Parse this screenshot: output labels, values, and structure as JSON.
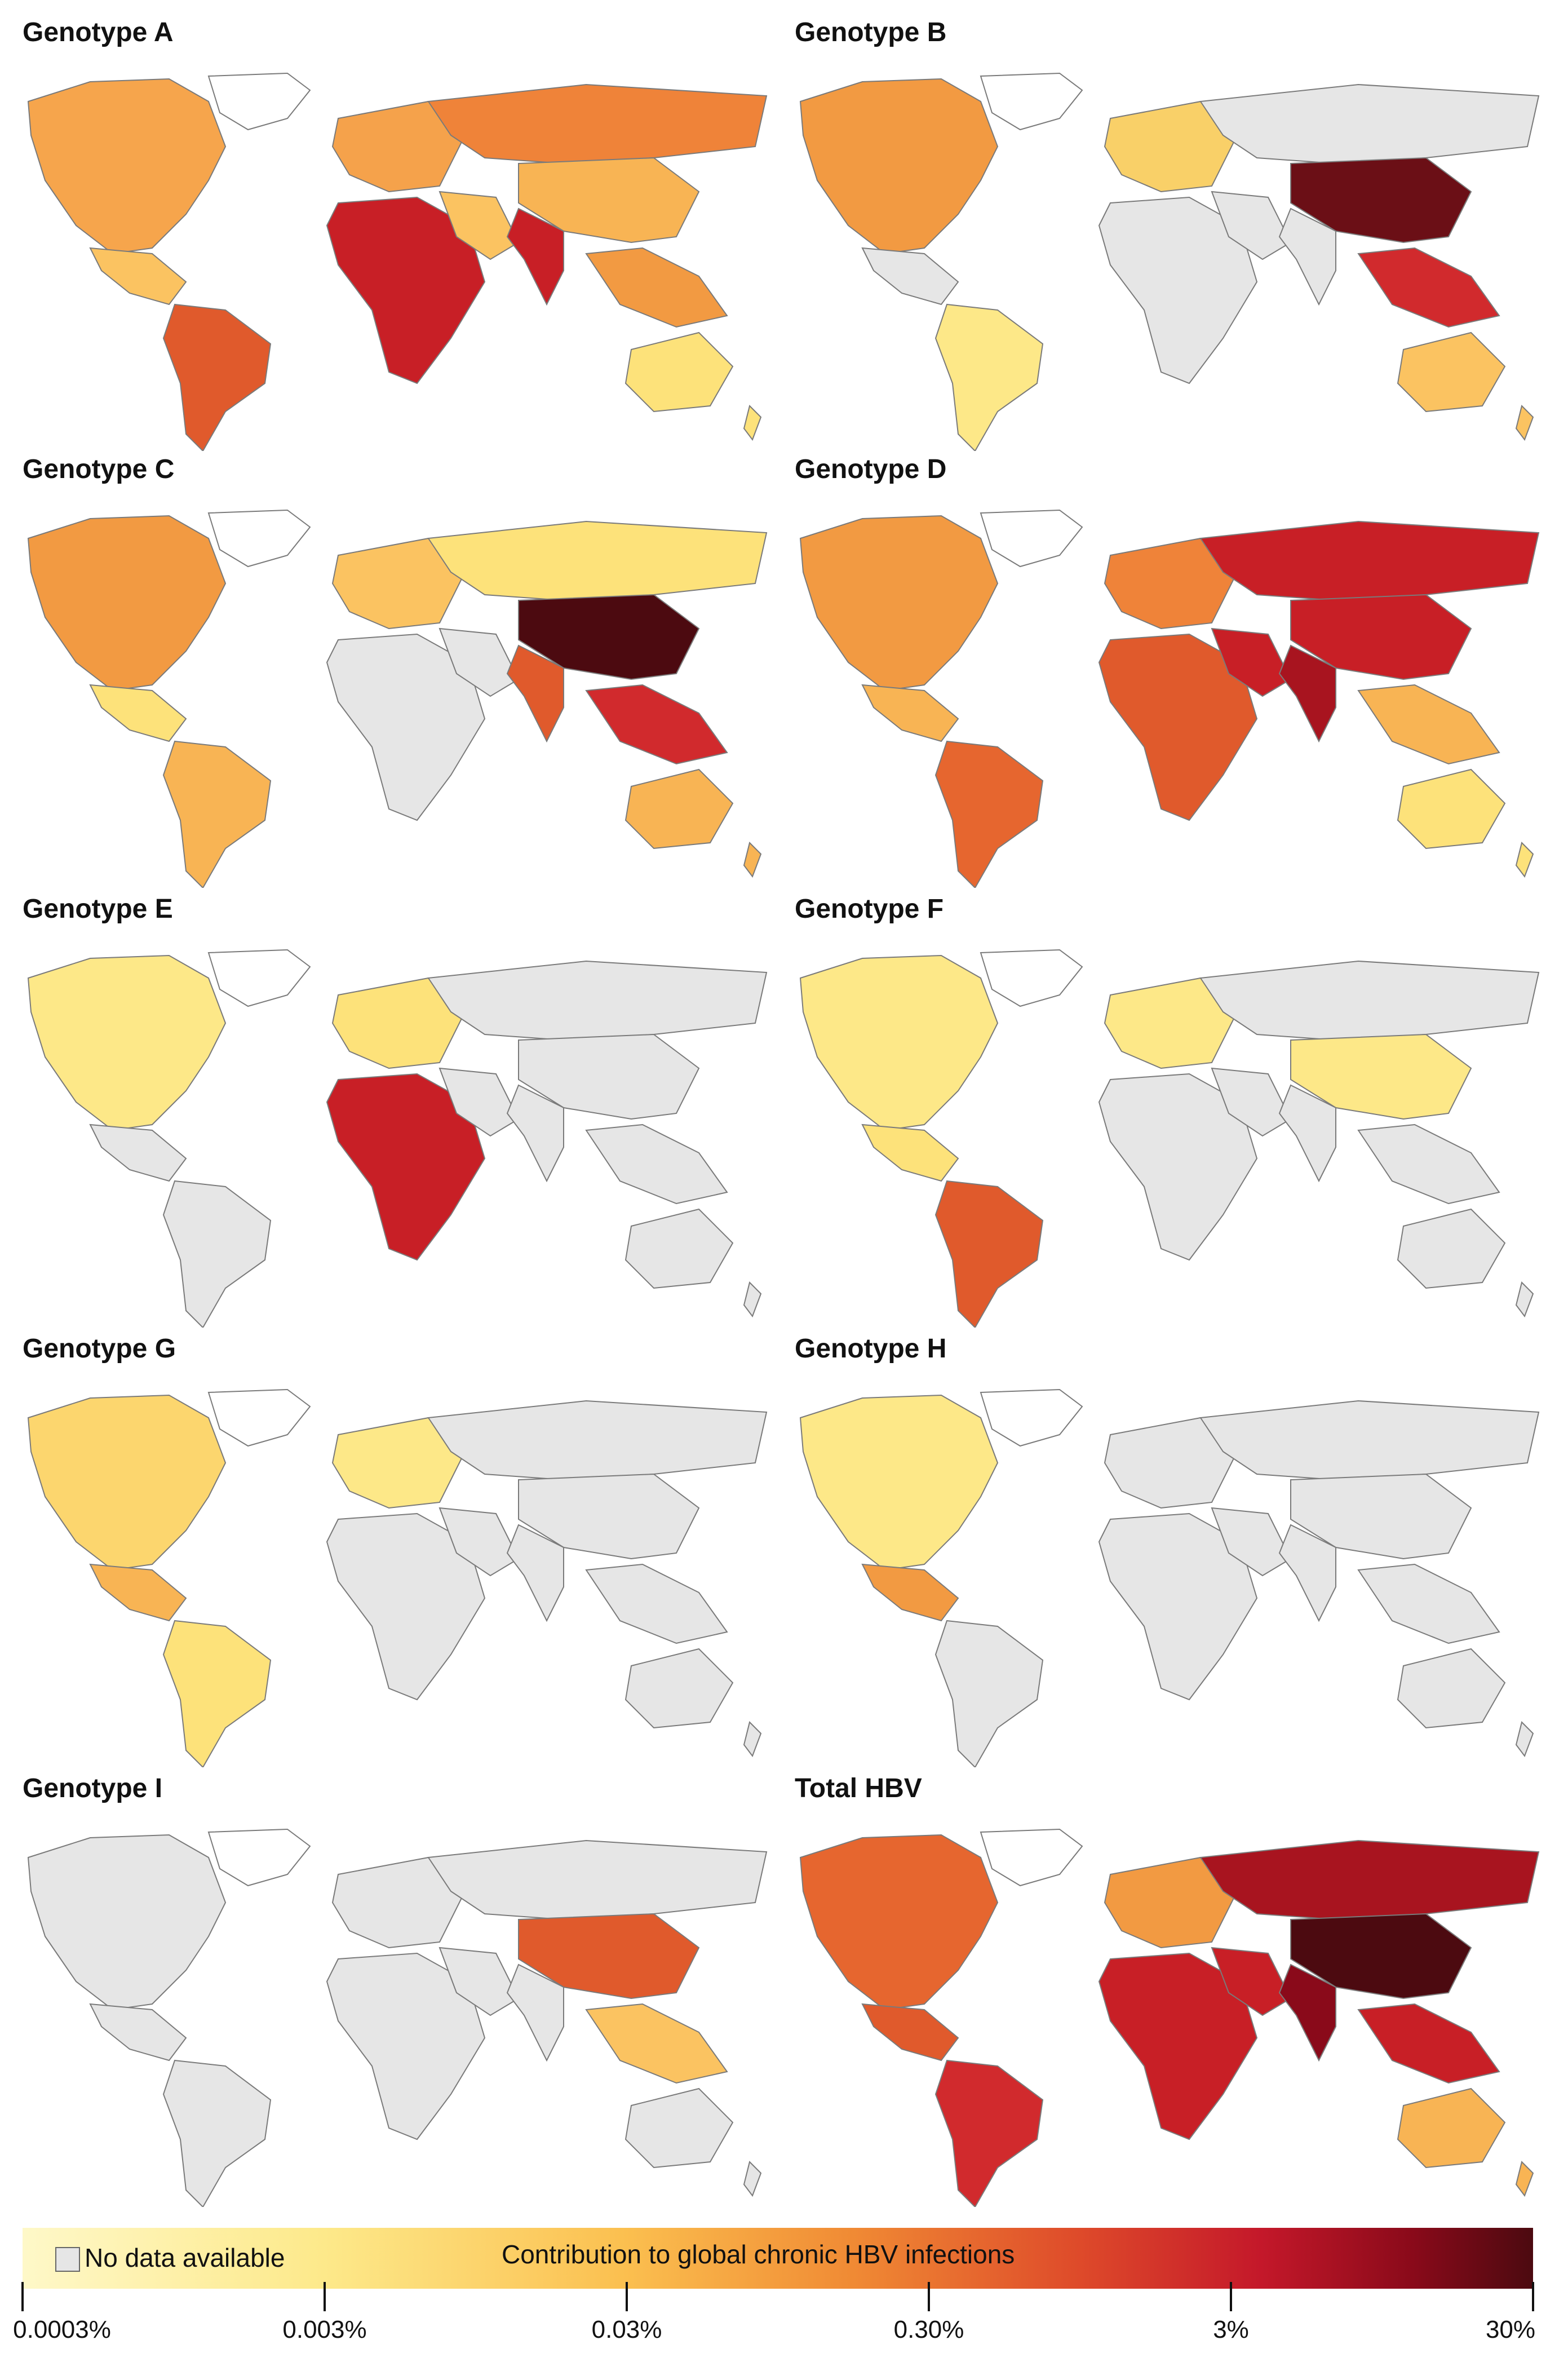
{
  "panels": [
    {
      "id": "A",
      "title": "Genotype A",
      "fills": {
        "na": "#f6a54c",
        "ca": "#fbc361",
        "sa": "#e05a2c",
        "europe": "#f5a24b",
        "africa": "#c81f26",
        "mideast": "#fbc361",
        "russia": "#ef8339",
        "asia": "#f8b454",
        "india": "#c81f26",
        "sea": "#f29a42",
        "australia": "#fde27a",
        "greenland": "#ffffff"
      }
    },
    {
      "id": "B",
      "title": "Genotype B",
      "fills": {
        "na": "#f29a42",
        "ca": "#e6e6e6",
        "sa": "#fde888",
        "europe": "#f9d068",
        "africa": "#e6e6e6",
        "mideast": "#e6e6e6",
        "russia": "#e6e6e6",
        "asia": "#6b0f16",
        "india": "#e6e6e6",
        "sea": "#d12a2d",
        "australia": "#fbc361",
        "greenland": "#ffffff"
      }
    },
    {
      "id": "C",
      "title": "Genotype C",
      "fills": {
        "na": "#f29a42",
        "ca": "#fde27a",
        "sa": "#f8b454",
        "europe": "#fbc361",
        "africa": "#e6e6e6",
        "mideast": "#e6e6e6",
        "russia": "#fde27a",
        "asia": "#4c0a10",
        "india": "#e05a2c",
        "sea": "#d12a2d",
        "australia": "#f8b454",
        "greenland": "#ffffff"
      }
    },
    {
      "id": "D",
      "title": "Genotype D",
      "fills": {
        "na": "#f29a42",
        "ca": "#f8b454",
        "sa": "#e6662f",
        "europe": "#ef8339",
        "africa": "#e05a2c",
        "mideast": "#c81f26",
        "russia": "#c81f26",
        "asia": "#c81f26",
        "india": "#a8141f",
        "sea": "#f8b454",
        "australia": "#fde27a",
        "greenland": "#ffffff"
      }
    },
    {
      "id": "E",
      "title": "Genotype E",
      "fills": {
        "na": "#fde888",
        "ca": "#e6e6e6",
        "sa": "#e6e6e6",
        "europe": "#fde27a",
        "africa": "#c81f26",
        "mideast": "#e6e6e6",
        "russia": "#e6e6e6",
        "asia": "#e6e6e6",
        "india": "#e6e6e6",
        "sea": "#e6e6e6",
        "australia": "#e6e6e6",
        "greenland": "#ffffff"
      }
    },
    {
      "id": "F",
      "title": "Genotype F",
      "fills": {
        "na": "#fde888",
        "ca": "#fde27a",
        "sa": "#e05a2c",
        "europe": "#fde888",
        "africa": "#e6e6e6",
        "mideast": "#e6e6e6",
        "russia": "#e6e6e6",
        "asia": "#fde888",
        "india": "#e6e6e6",
        "sea": "#e6e6e6",
        "australia": "#e6e6e6",
        "greenland": "#ffffff"
      }
    },
    {
      "id": "G",
      "title": "Genotype G",
      "fills": {
        "na": "#fcd66e",
        "ca": "#f8b454",
        "sa": "#fde27a",
        "europe": "#fde888",
        "africa": "#e6e6e6",
        "mideast": "#e6e6e6",
        "russia": "#e6e6e6",
        "asia": "#e6e6e6",
        "india": "#e6e6e6",
        "sea": "#e6e6e6",
        "australia": "#e6e6e6",
        "greenland": "#ffffff"
      }
    },
    {
      "id": "H",
      "title": "Genotype H",
      "fills": {
        "na": "#fde888",
        "ca": "#f29a42",
        "sa": "#e6e6e6",
        "europe": "#e6e6e6",
        "africa": "#e6e6e6",
        "mideast": "#e6e6e6",
        "russia": "#e6e6e6",
        "asia": "#e6e6e6",
        "india": "#e6e6e6",
        "sea": "#e6e6e6",
        "australia": "#e6e6e6",
        "greenland": "#ffffff"
      }
    },
    {
      "id": "I",
      "title": "Genotype I",
      "fills": {
        "na": "#e6e6e6",
        "ca": "#e6e6e6",
        "sa": "#e6e6e6",
        "europe": "#e6e6e6",
        "africa": "#e6e6e6",
        "mideast": "#e6e6e6",
        "russia": "#e6e6e6",
        "asia": "#e05a2c",
        "india": "#e6e6e6",
        "sea": "#fbc361",
        "australia": "#e6e6e6",
        "greenland": "#ffffff"
      }
    },
    {
      "id": "Total",
      "title": "Total HBV",
      "fills": {
        "na": "#e6662f",
        "ca": "#e05a2c",
        "sa": "#d12a2d",
        "europe": "#f29a42",
        "africa": "#c81f26",
        "mideast": "#c81f26",
        "russia": "#a8141f",
        "asia": "#4c0a10",
        "india": "#8a0a1a",
        "sea": "#c81f26",
        "australia": "#f8b454",
        "greenland": "#ffffff"
      }
    }
  ],
  "legend": {
    "no_data_label": "No data available",
    "no_data_color": "#e6e6e6",
    "title": "Contribution to global chronic HBV infections",
    "ticks": [
      {
        "label": "0.0003%",
        "pos": 0.0
      },
      {
        "label": "0.003%",
        "pos": 0.2
      },
      {
        "label": "0.03%",
        "pos": 0.4
      },
      {
        "label": "0.30%",
        "pos": 0.6
      },
      {
        "label": "3%",
        "pos": 0.8
      },
      {
        "label": "30%",
        "pos": 1.0
      }
    ]
  }
}
